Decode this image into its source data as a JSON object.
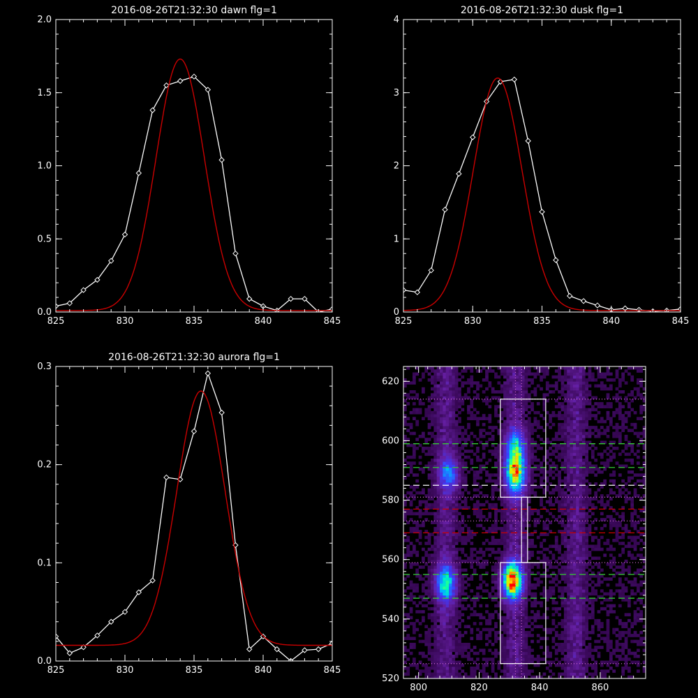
{
  "chart_data": [
    {
      "type": "line",
      "title": "2016-08-26T21:32:30 dawn flg=1",
      "xlim": [
        825,
        845
      ],
      "ylim": [
        0,
        2.0
      ],
      "xticks": [
        825,
        830,
        835,
        840,
        845
      ],
      "xtick_labels": [
        "825",
        "830",
        "835",
        "840",
        "845"
      ],
      "yticks": [
        0,
        0.5,
        1.0,
        1.5,
        2.0
      ],
      "ytick_labels": [
        "0.0",
        "0.5",
        "1.0",
        "1.5",
        "2.0"
      ],
      "series": [
        {
          "color": "#ffffff",
          "marker": "diamond",
          "x": [
            825,
            826,
            827,
            828,
            829,
            830,
            831,
            832,
            833,
            834,
            835,
            836,
            837,
            838,
            839,
            840,
            841,
            842,
            843,
            844,
            845
          ],
          "y": [
            0.04,
            0.06,
            0.15,
            0.22,
            0.35,
            0.53,
            0.95,
            1.38,
            1.55,
            1.58,
            1.61,
            1.52,
            1.04,
            0.4,
            0.09,
            0.04,
            0.01,
            0.09,
            0.09,
            0.0,
            0.02
          ]
        },
        {
          "color": "#cc0000",
          "fit": "gaussian",
          "amplitude": 1.72,
          "center": 834.0,
          "sigma": 1.75,
          "offset": 0.01
        }
      ]
    },
    {
      "type": "line",
      "title": "2016-08-26T21:32:30 dusk flg=1",
      "xlim": [
        825,
        845
      ],
      "ylim": [
        0,
        4
      ],
      "xticks": [
        825,
        830,
        835,
        840,
        845
      ],
      "xtick_labels": [
        "825",
        "830",
        "835",
        "840",
        "845"
      ],
      "yticks": [
        0,
        1,
        2,
        3,
        4
      ],
      "ytick_labels": [
        "0",
        "1",
        "2",
        "3",
        "4"
      ],
      "series": [
        {
          "color": "#ffffff",
          "marker": "diamond",
          "x": [
            825,
            826,
            827,
            828,
            829,
            830,
            831,
            832,
            833,
            834,
            835,
            836,
            837,
            838,
            839,
            840,
            841,
            842,
            843,
            844,
            845
          ],
          "y": [
            0.3,
            0.27,
            0.57,
            1.4,
            1.89,
            2.39,
            2.88,
            3.15,
            3.18,
            2.34,
            1.37,
            0.71,
            0.22,
            0.15,
            0.09,
            0.03,
            0.05,
            0.03,
            0.01,
            0.02,
            0.04
          ]
        },
        {
          "color": "#cc0000",
          "fit": "gaussian",
          "amplitude": 3.18,
          "center": 831.8,
          "sigma": 1.75,
          "offset": 0.02
        }
      ]
    },
    {
      "type": "line",
      "title": "2016-08-26T21:32:30 aurora flg=1",
      "xlim": [
        825,
        845
      ],
      "ylim": [
        0,
        0.3
      ],
      "xticks": [
        825,
        830,
        835,
        840,
        845
      ],
      "xtick_labels": [
        "825",
        "830",
        "835",
        "840",
        "845"
      ],
      "yticks": [
        0,
        0.1,
        0.2,
        0.3
      ],
      "ytick_labels": [
        "0.0",
        "0.1",
        "0.2",
        "0.3"
      ],
      "series": [
        {
          "color": "#ffffff",
          "marker": "diamond",
          "x": [
            825,
            826,
            827,
            828,
            829,
            830,
            831,
            832,
            833,
            834,
            835,
            836,
            837,
            838,
            839,
            840,
            841,
            842,
            843,
            844,
            845
          ],
          "y": [
            0.025,
            0.008,
            0.014,
            0.026,
            0.04,
            0.05,
            0.07,
            0.082,
            0.187,
            0.185,
            0.234,
            0.293,
            0.253,
            0.118,
            0.012,
            0.025,
            0.012,
            0.0,
            0.011,
            0.012,
            0.018
          ]
        },
        {
          "color": "#cc0000",
          "fit": "gaussian",
          "amplitude": 0.259,
          "center": 835.5,
          "sigma": 1.75,
          "offset": 0.016
        }
      ]
    },
    {
      "type": "heatmap",
      "title": "",
      "xlim": [
        795,
        875
      ],
      "ylim": [
        520,
        625
      ],
      "xticks": [
        800,
        820,
        840,
        860
      ],
      "xtick_labels": [
        "800",
        "820",
        "840",
        "860"
      ],
      "yticks": [
        520,
        540,
        560,
        580,
        600,
        620
      ],
      "ytick_labels": [
        "520",
        "540",
        "560",
        "580",
        "600",
        "620"
      ],
      "colormap": "rainbow",
      "bright_spots": [
        {
          "x": 809,
          "y": 552,
          "intensity": 0.55
        },
        {
          "x": 831,
          "y": 553,
          "intensity": 1.0
        },
        {
          "x": 832,
          "y": 598,
          "intensity": 0.45
        },
        {
          "x": 832,
          "y": 587,
          "intensity": 0.4
        },
        {
          "x": 810,
          "y": 589,
          "intensity": 0.35
        },
        {
          "x": 832,
          "y": 591,
          "intensity": 0.5
        }
      ],
      "boxes": [
        {
          "x0": 827,
          "x1": 842,
          "y0": 525,
          "y1": 559,
          "color": "#ffffff"
        },
        {
          "x0": 827,
          "x1": 842,
          "y0": 581,
          "y1": 614,
          "color": "#ffffff"
        },
        {
          "x0": 834,
          "x1": 836,
          "y0": 559,
          "y1": 581,
          "color": "#ffffff"
        }
      ],
      "hlines": [
        {
          "y": 614,
          "color": "#cc66cc",
          "style": "dotted"
        },
        {
          "y": 599,
          "color": "#33cc33",
          "style": "dashed"
        },
        {
          "y": 591,
          "color": "#33cc33",
          "style": "dashed"
        },
        {
          "y": 585,
          "color": "#ffffff",
          "style": "dashed"
        },
        {
          "y": 581,
          "color": "#cc66cc",
          "style": "dotted"
        },
        {
          "y": 577,
          "color": "#cc0000",
          "style": "dashed"
        },
        {
          "y": 573,
          "color": "#cc66cc",
          "style": "dotted"
        },
        {
          "y": 569,
          "color": "#cc0000",
          "style": "dashed"
        },
        {
          "y": 559,
          "color": "#cc66cc",
          "style": "dotted"
        },
        {
          "y": 555,
          "color": "#33cc33",
          "style": "dashed"
        },
        {
          "y": 547,
          "color": "#33cc33",
          "style": "dashed"
        },
        {
          "y": 525,
          "color": "#cc66cc",
          "style": "dotted"
        }
      ],
      "vlines": [
        {
          "x": 832,
          "color": "#cc66cc",
          "style": "dotted"
        },
        {
          "x": 834,
          "color": "#cc66cc",
          "style": "dotted"
        }
      ]
    }
  ]
}
